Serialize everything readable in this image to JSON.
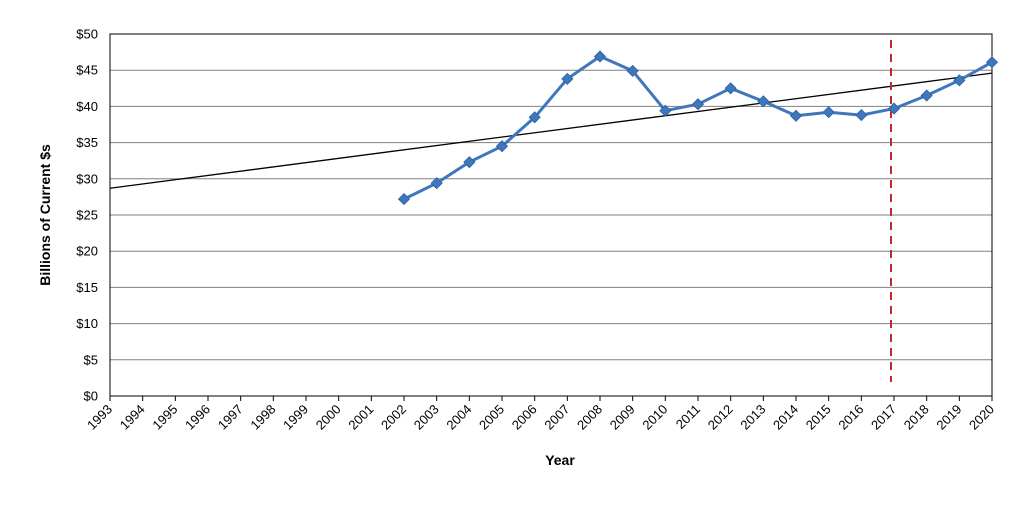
{
  "chart_data": {
    "type": "line",
    "title": "",
    "xlabel": "Year",
    "ylabel": "Billions of Current $s",
    "x_categories": [
      "1993",
      "1994",
      "1995",
      "1996",
      "1997",
      "1998",
      "1999",
      "2000",
      "2001",
      "2002",
      "2003",
      "2004",
      "2005",
      "2006",
      "2007",
      "2008",
      "2009",
      "2010",
      "2011",
      "2012",
      "2013",
      "2014",
      "2015",
      "2016",
      "2017",
      "2018",
      "2019",
      "2020"
    ],
    "y_ticks": [
      "$0",
      "$5",
      "$10",
      "$15",
      "$20",
      "$25",
      "$30",
      "$35",
      "$40",
      "$45",
      "$50"
    ],
    "ylim": [
      0,
      50
    ],
    "grid": "horizontal",
    "legend": "none",
    "series": [
      {
        "x": [
          "2002",
          "2003",
          "2004",
          "2005",
          "2006",
          "2007",
          "2008",
          "2009",
          "2010",
          "2011",
          "2012",
          "2013",
          "2014",
          "2015",
          "2016",
          "2017",
          "2018",
          "2019",
          "2020"
        ],
        "values": [
          27.2,
          29.4,
          32.3,
          34.5,
          38.5,
          43.8,
          46.9,
          44.9,
          39.4,
          40.3,
          42.5,
          40.7,
          38.7,
          39.2,
          38.8,
          39.7,
          41.5,
          43.6,
          46.1
        ],
        "color": "#3f77bc",
        "marker": "diamond"
      }
    ],
    "trendline": {
      "type": "linear",
      "start": {
        "x": "1993",
        "y": 28.7
      },
      "end": {
        "x": "2020",
        "y": 44.6
      },
      "color": "#000000"
    },
    "reference_line": {
      "x": "2017",
      "style": "dashed",
      "color": "#c0282d"
    },
    "colors": {
      "gridline": "#808080",
      "plot_border": "#000000"
    }
  }
}
